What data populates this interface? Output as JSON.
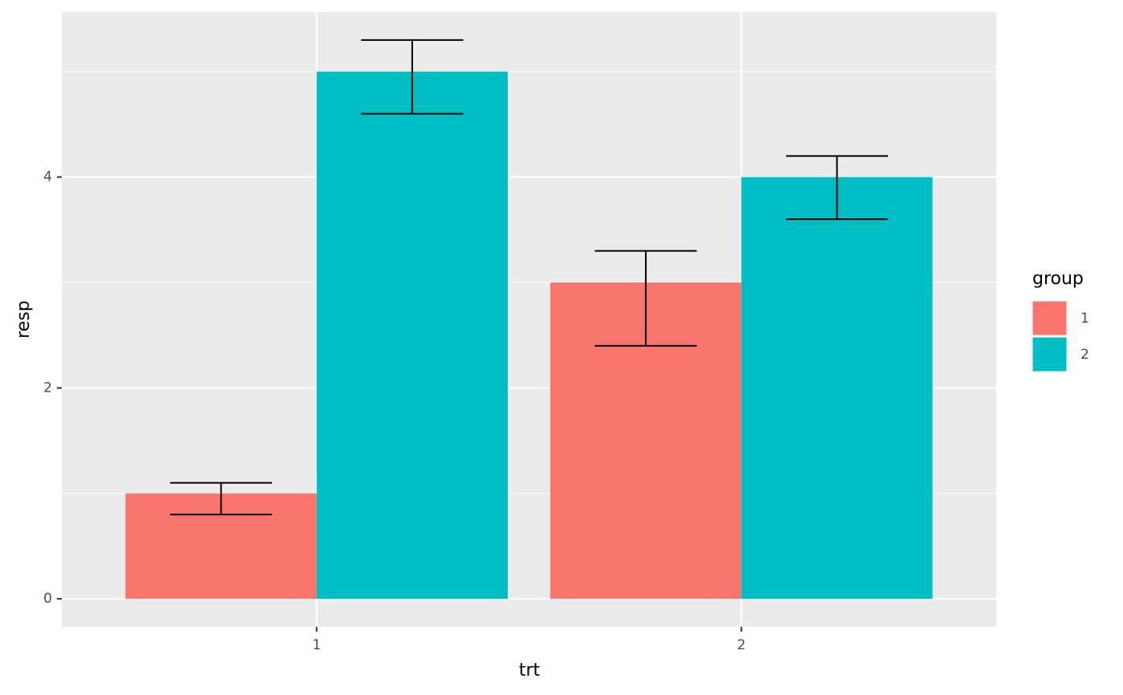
{
  "chart_data": {
    "type": "bar",
    "x_label": "trt",
    "y_label": "resp",
    "categories": [
      "1",
      "2"
    ],
    "legend_title": "group",
    "series": [
      {
        "name": "1",
        "color": "#F8766D",
        "values": [
          1,
          3
        ],
        "lower": [
          0.8,
          2.4
        ],
        "upper": [
          1.1,
          3.3
        ]
      },
      {
        "name": "2",
        "color": "#00BFC4",
        "values": [
          5,
          4
        ],
        "lower": [
          4.6,
          3.6
        ],
        "upper": [
          5.3,
          4.2
        ]
      }
    ],
    "ylim": [
      -0.265,
      5.565
    ],
    "yticks": [
      0,
      2,
      4
    ],
    "yminor": [
      1,
      3,
      5
    ],
    "grid": true,
    "legend": "right"
  }
}
